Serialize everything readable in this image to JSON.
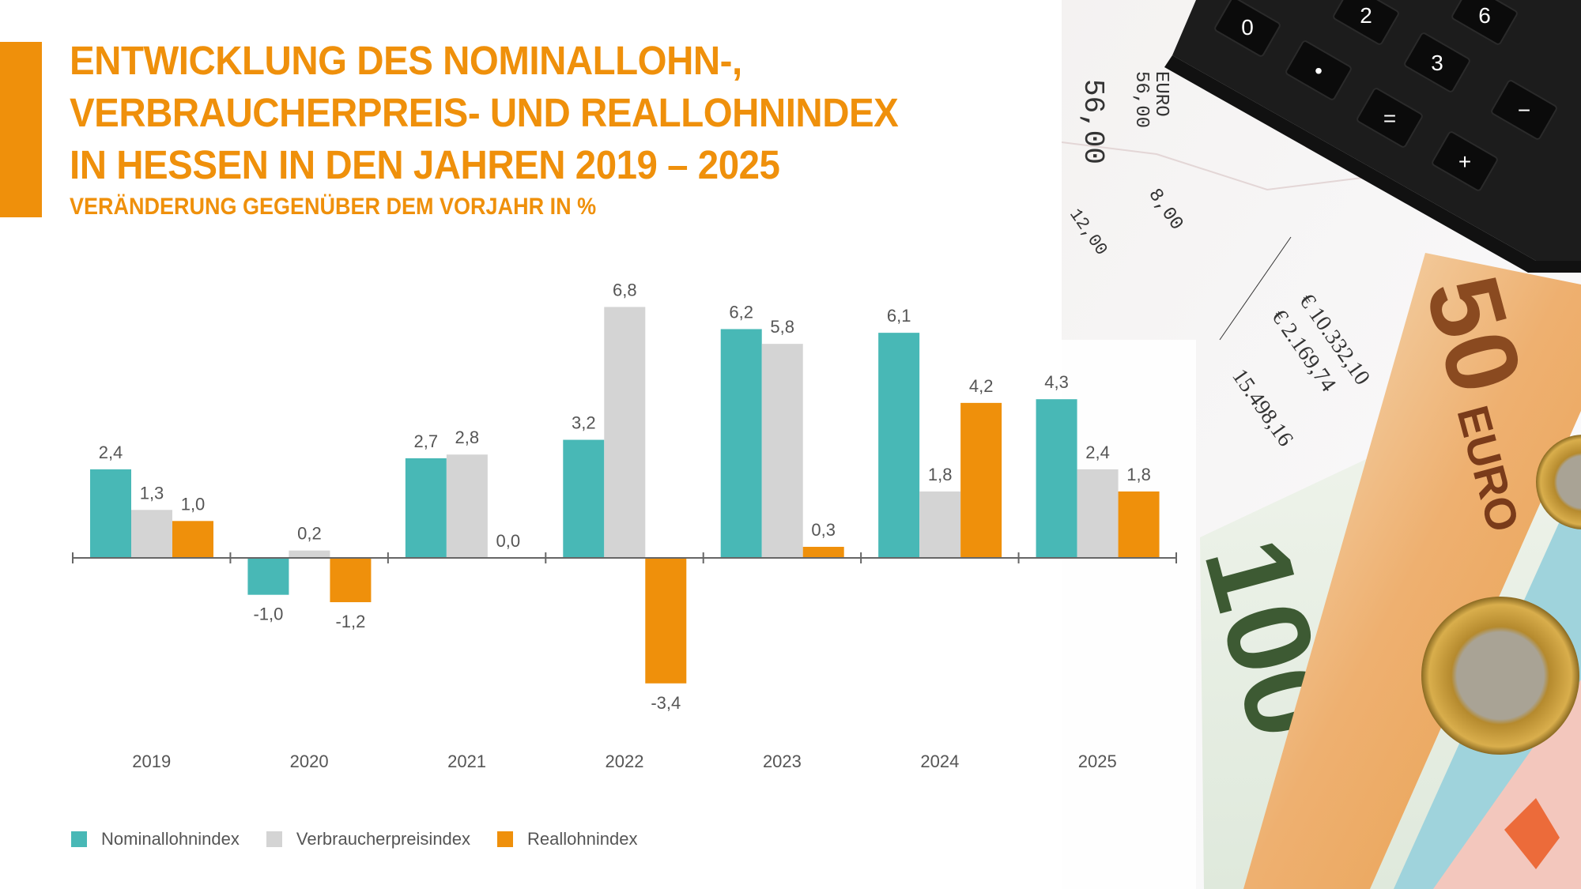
{
  "title_lines": [
    "ENTWICKLUNG DES NOMINALLOHN-,",
    "VERBRAUCHERPREIS- UND REALLOHNINDEX",
    "IN HESSEN IN DEN JAHREN 2019 – 2025"
  ],
  "subtitle": "VERÄNDERUNG GEGENÜBER DEM VORJAHR IN %",
  "colors": {
    "accent": "#ef900b",
    "nominal": "#48b8b6",
    "cpi": "#d4d4d4",
    "real": "#ef900b",
    "text": "#555555",
    "axis": "#666666"
  },
  "chart_data": {
    "type": "bar",
    "title": "Entwicklung des Nominallohn-, Verbraucherpreis- und Reallohnindex in Hessen in den Jahren 2019 – 2025",
    "subtitle": "Veränderung gegenüber dem Vorjahr in %",
    "xlabel": "",
    "ylabel": "",
    "categories": [
      "2019",
      "2020",
      "2021",
      "2022",
      "2023",
      "2024",
      "2025"
    ],
    "series": [
      {
        "name": "Nominallohnindex",
        "color": "#48b8b6",
        "values": [
          2.4,
          -1.0,
          2.7,
          3.2,
          6.2,
          6.1,
          4.3
        ],
        "labels": [
          "2,4",
          "-1,0",
          "2,7",
          "3,2",
          "6,2",
          "6,1",
          "4,3"
        ]
      },
      {
        "name": "Verbraucherpreisindex",
        "color": "#d4d4d4",
        "values": [
          1.3,
          0.2,
          2.8,
          6.8,
          5.8,
          1.8,
          2.4
        ],
        "labels": [
          "1,3",
          "0,2",
          "2,8",
          "6,8",
          "5,8",
          "1,8",
          "2,4"
        ]
      },
      {
        "name": "Reallohnindex",
        "color": "#ef900b",
        "values": [
          1.0,
          -1.2,
          0.0,
          -3.4,
          0.3,
          4.2,
          1.8
        ],
        "labels": [
          "1,0",
          "-1,2",
          "0,0",
          "-3,4",
          "0,3",
          "4,2",
          "1,8"
        ]
      }
    ],
    "ylim": [
      -4,
      7.5
    ],
    "grid": false,
    "y_axis_visible": false,
    "data_labels": true,
    "legend_position": "bottom-left"
  },
  "legend": [
    {
      "label": "Nominallohnindex",
      "color": "#48b8b6"
    },
    {
      "label": "Verbraucherpreisindex",
      "color": "#d4d4d4"
    },
    {
      "label": "Reallohnindex",
      "color": "#ef900b"
    }
  ],
  "photo": {
    "description": "Foto: Taschenrechner, Kassenbelege, Euro-Banknoten und Münzen",
    "calculator_keys": [
      "0",
      "2",
      "6",
      "•",
      "3",
      "=",
      "−",
      "+"
    ],
    "receipt_texts": [
      "56,00",
      "EURO",
      "56,00",
      "8,00",
      "12,00",
      "€ 10.332,10",
      "€ 2.169,74",
      "15.498,16"
    ],
    "banknotes": [
      "50",
      "100",
      "EURO"
    ]
  }
}
